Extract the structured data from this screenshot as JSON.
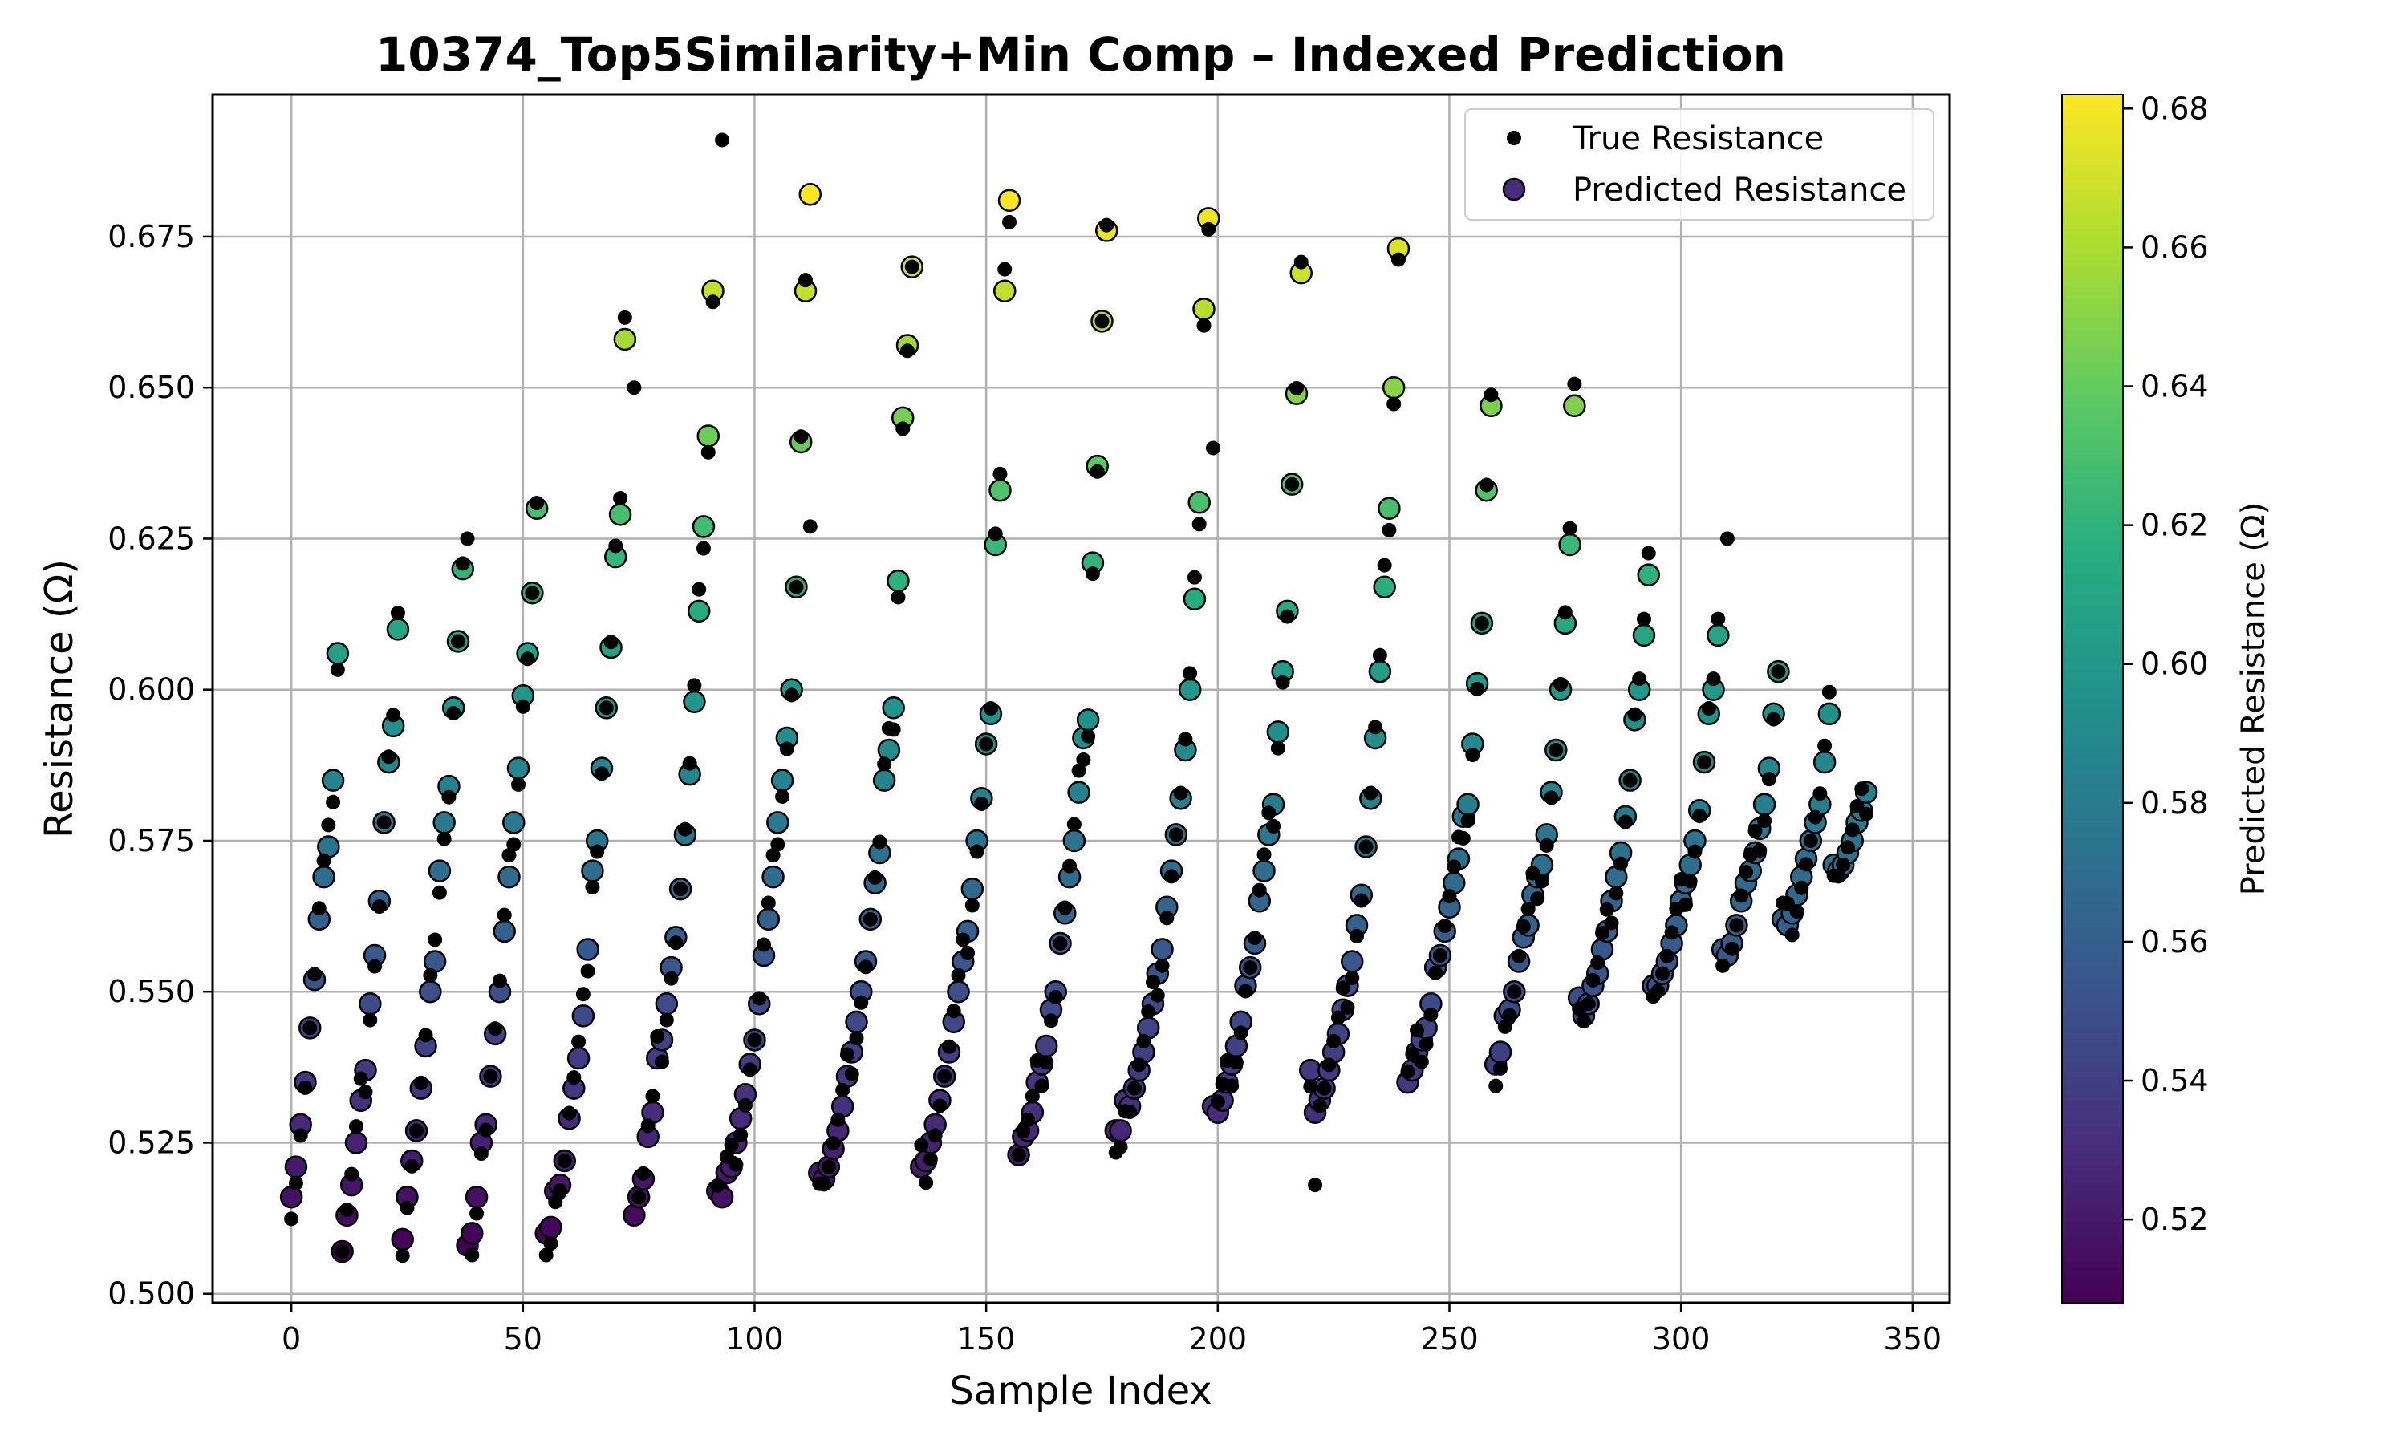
{
  "chart_data": {
    "type": "scatter",
    "title": "10374_Top5Similarity+Min Comp – Indexed Prediction",
    "xlabel": "Sample Index",
    "ylabel": "Resistance (Ω)",
    "xlim": [
      -17,
      358
    ],
    "ylim": [
      0.4985,
      0.6985
    ],
    "xticks": [
      0,
      50,
      100,
      150,
      200,
      250,
      300,
      350
    ],
    "yticks": [
      0.5,
      0.525,
      0.55,
      0.575,
      0.6,
      0.625,
      0.65,
      0.675
    ],
    "ytick_labels": [
      "0.500",
      "0.525",
      "0.550",
      "0.575",
      "0.600",
      "0.625",
      "0.650",
      "0.675"
    ],
    "grid": true,
    "legend_position": "top-right",
    "legend": [
      "True Resistance",
      "Predicted Resistance"
    ],
    "colormap": "viridis",
    "colorbar": {
      "label": "Predicted Resistance (Ω)",
      "range": [
        0.508,
        0.682
      ],
      "ticks": [
        0.52,
        0.54,
        0.56,
        0.58,
        0.6,
        0.62,
        0.64,
        0.66,
        0.68
      ],
      "tick_labels": [
        "0.52",
        "0.54",
        "0.56",
        "0.58",
        "0.60",
        "0.62",
        "0.64",
        "0.66",
        "0.68"
      ]
    },
    "groups": [
      {
        "start": 0,
        "values": [
          0.516,
          0.521,
          0.528,
          0.535,
          0.544,
          0.552,
          0.562,
          0.569,
          0.574,
          0.585,
          0.606
        ]
      },
      {
        "start": 11,
        "values": [
          0.507,
          0.513,
          0.518,
          0.525,
          0.532,
          0.537,
          0.548,
          0.556,
          0.565,
          0.578,
          0.588,
          0.594,
          0.61
        ]
      },
      {
        "start": 24,
        "values": [
          0.509,
          0.516,
          0.522,
          0.527,
          0.534,
          0.541,
          0.55,
          0.555,
          0.57,
          0.578,
          0.584,
          0.597,
          0.608,
          0.62
        ]
      },
      {
        "start": 38,
        "values": [
          0.508,
          0.51,
          0.516,
          0.525,
          0.528,
          0.536,
          0.543,
          0.55,
          0.56,
          0.569,
          0.578,
          0.587,
          0.599,
          0.606,
          0.616,
          0.63
        ]
      },
      {
        "start": 55,
        "values": [
          0.51,
          0.511,
          0.517,
          0.518,
          0.522,
          0.529,
          0.534,
          0.539,
          0.546,
          0.557,
          0.57,
          0.575,
          0.587,
          0.597,
          0.607,
          0.622,
          0.629,
          0.658
        ]
      },
      {
        "start": 74,
        "values": [
          0.513,
          0.516,
          0.519,
          0.526,
          0.53,
          0.539,
          0.542,
          0.548,
          0.554,
          0.559,
          0.567,
          0.576,
          0.586,
          0.598,
          0.613,
          0.627,
          0.642,
          0.666
        ]
      },
      {
        "start": 92,
        "values": [
          0.517,
          0.516,
          0.52,
          0.521,
          0.525,
          0.529,
          0.533,
          0.538,
          0.542,
          0.548,
          0.556,
          0.562,
          0.569,
          0.578,
          0.585,
          0.592,
          0.6,
          0.617,
          0.641,
          0.666,
          0.682
        ]
      },
      {
        "start": 114,
        "values": [
          0.52,
          0.519,
          0.521,
          0.524,
          0.527,
          0.531,
          0.536,
          0.54,
          0.545,
          0.55,
          0.555,
          0.562,
          0.568,
          0.573,
          0.585,
          0.59,
          0.597,
          0.618,
          0.645,
          0.657,
          0.67
        ]
      },
      {
        "start": 136,
        "values": [
          0.521,
          0.522,
          0.525,
          0.528,
          0.532,
          0.536,
          0.54,
          0.545,
          0.55,
          0.555,
          0.56,
          0.567,
          0.575,
          0.582,
          0.591,
          0.596,
          0.624,
          0.633,
          0.666,
          0.681
        ]
      },
      {
        "start": 157,
        "values": [
          0.523,
          0.526,
          0.527,
          0.53,
          0.535,
          0.538,
          0.541,
          0.547,
          0.55,
          0.558,
          0.563,
          0.569,
          0.575,
          0.583,
          0.592,
          0.595,
          0.621,
          0.637,
          0.661,
          0.676
        ]
      },
      {
        "start": 178,
        "values": [
          0.527,
          0.527,
          0.532,
          0.531,
          0.534,
          0.537,
          0.54,
          0.544,
          0.548,
          0.553,
          0.557,
          0.564,
          0.57,
          0.576,
          0.582,
          0.59,
          0.6,
          0.615,
          0.631,
          0.663,
          0.678
        ]
      },
      {
        "start": 199,
        "values": [
          0.531,
          0.53,
          0.532,
          0.535,
          0.538,
          0.541,
          0.545,
          0.551,
          0.554,
          0.558,
          0.565,
          0.57,
          0.576,
          0.581,
          0.593,
          0.603,
          0.613,
          0.634,
          0.649,
          0.669
        ]
      },
      {
        "start": 220,
        "values": [
          0.537,
          0.53,
          0.532,
          0.534,
          0.537,
          0.54,
          0.543,
          0.547,
          0.551,
          0.555,
          0.561,
          0.566,
          0.574,
          0.582,
          0.592,
          0.603,
          0.617,
          0.63,
          0.65,
          0.673
        ]
      },
      {
        "start": 241,
        "values": [
          0.535,
          0.537,
          0.54,
          0.542,
          0.544,
          0.548,
          0.554,
          0.556,
          0.56,
          0.564,
          0.568,
          0.572,
          0.579,
          0.581,
          0.591,
          0.601,
          0.611,
          0.633,
          0.647
        ]
      },
      {
        "start": 260,
        "values": [
          0.538,
          0.54,
          0.546,
          0.547,
          0.55,
          0.555,
          0.559,
          0.561,
          0.566,
          0.569,
          0.571,
          0.576,
          0.583,
          0.59,
          0.6,
          0.611,
          0.624,
          0.647
        ]
      },
      {
        "start": 278,
        "values": [
          0.549,
          0.546,
          0.548,
          0.551,
          0.553,
          0.557,
          0.56,
          0.565,
          0.569,
          0.573,
          0.579,
          0.585,
          0.595,
          0.6,
          0.609,
          0.619
        ]
      },
      {
        "start": 294,
        "values": [
          0.551,
          0.551,
          0.553,
          0.555,
          0.558,
          0.561,
          0.565,
          0.568,
          0.571,
          0.575,
          0.58,
          0.588,
          0.596,
          0.6,
          0.609
        ]
      },
      {
        "start": 309,
        "values": [
          0.557,
          0.556,
          0.558,
          0.561,
          0.565,
          0.568,
          0.57,
          0.573,
          0.577,
          0.581,
          0.587,
          0.596,
          0.603
        ]
      },
      {
        "start": 322,
        "values": [
          0.562,
          0.561,
          0.563,
          0.566,
          0.569,
          0.572,
          0.575,
          0.578,
          0.581,
          0.588,
          0.596
        ]
      },
      {
        "start": 333,
        "values": [
          0.571,
          0.57,
          0.571,
          0.573,
          0.575,
          0.578,
          0.58,
          0.583
        ]
      }
    ],
    "true_offsets": [
      {
        "i": 93,
        "v": 0.691
      },
      {
        "i": 74,
        "v": 0.65
      },
      {
        "i": 135,
        "v": 0.648
      },
      {
        "i": 156,
        "v": 0.64
      },
      {
        "i": 219,
        "v": 0.644
      },
      {
        "i": 199,
        "v": 0.64
      },
      {
        "i": 112,
        "v": 0.627
      },
      {
        "i": 38,
        "v": 0.625
      },
      {
        "i": 310,
        "v": 0.625
      },
      {
        "i": 221,
        "v": 0.518
      }
    ]
  }
}
